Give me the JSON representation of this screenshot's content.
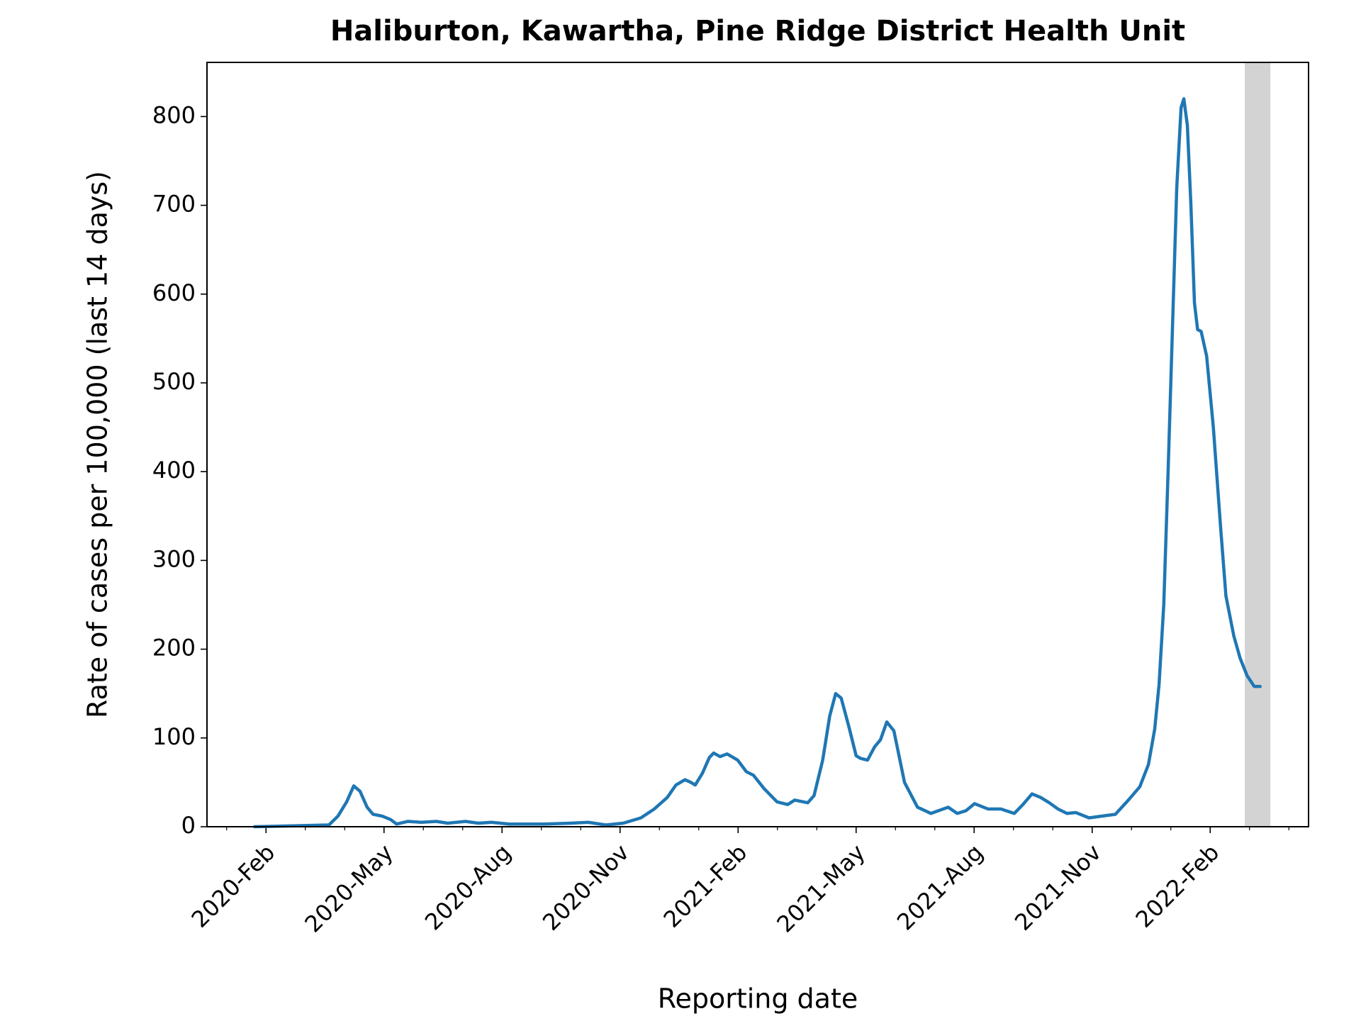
{
  "chart_data": {
    "type": "line",
    "title": "Haliburton, Kawartha, Pine Ridge District Health Unit",
    "x_label": "Reporting date",
    "y_label": "Rate of cases per 100,000 (last 14 days)",
    "x": [
      0.71,
      2.6,
      2.83,
      3.05,
      3.23,
      3.39,
      3.57,
      3.72,
      3.95,
      4.17,
      4.32,
      4.61,
      4.95,
      5.33,
      5.62,
      6.07,
      6.4,
      6.73,
      7.18,
      8.07,
      8.74,
      9.19,
      9.64,
      10.08,
      10.53,
      10.87,
      11.2,
      11.42,
      11.65,
      11.8,
      11.91,
      12.09,
      12.27,
      12.38,
      12.54,
      12.72,
      12.99,
      13.21,
      13.39,
      13.66,
      13.99,
      14.26,
      14.44,
      14.77,
      14.93,
      15.15,
      15.33,
      15.48,
      15.62,
      15.82,
      16.0,
      16.11,
      16.29,
      16.47,
      16.62,
      16.78,
      16.96,
      17.23,
      17.56,
      17.9,
      18.34,
      18.57,
      18.79,
      19.01,
      19.35,
      19.68,
      20.02,
      20.24,
      20.47,
      20.69,
      20.91,
      21.13,
      21.36,
      21.58,
      21.92,
      22.25,
      22.59,
      22.92,
      23.21,
      23.43,
      23.59,
      23.7,
      23.82,
      23.93,
      24.04,
      24.15,
      24.26,
      24.33,
      24.42,
      24.51,
      24.6,
      24.68,
      24.77,
      24.91,
      25.08,
      25.26,
      25.4,
      25.6,
      25.76,
      25.94,
      26.12,
      26.27
    ],
    "series": [
      {
        "color": "#1f77b4",
        "values": [
          0,
          2,
          12,
          28,
          46,
          40,
          22,
          14,
          12,
          8,
          3,
          6,
          5,
          6,
          4,
          6,
          4,
          5,
          3,
          3,
          4,
          5,
          2,
          4,
          10,
          20,
          33,
          47,
          53,
          50,
          47,
          60,
          78,
          83,
          79,
          82,
          75,
          62,
          58,
          43,
          28,
          25,
          30,
          27,
          35,
          75,
          125,
          150,
          145,
          112,
          80,
          77,
          75,
          90,
          98,
          118,
          108,
          50,
          22,
          15,
          22,
          15,
          18,
          26,
          20,
          20,
          15,
          25,
          37,
          33,
          27,
          20,
          15,
          16,
          10,
          12,
          14,
          30,
          45,
          70,
          110,
          160,
          250,
          400,
          560,
          720,
          810,
          820,
          790,
          700,
          590,
          560,
          558,
          530,
          450,
          340,
          260,
          215,
          190,
          170,
          158,
          158
        ]
      }
    ],
    "xlim": [
      -0.5,
      27.5
    ],
    "xticks": [
      {
        "value": 1,
        "label": "2020-Feb"
      },
      {
        "value": 4,
        "label": "2020-May"
      },
      {
        "value": 7,
        "label": "2020-Aug"
      },
      {
        "value": 10,
        "label": "2020-Nov"
      },
      {
        "value": 13,
        "label": "2021-Feb"
      },
      {
        "value": 16,
        "label": "2021-May"
      },
      {
        "value": 19,
        "label": "2021-Aug"
      },
      {
        "value": 22,
        "label": "2021-Nov"
      },
      {
        "value": 25,
        "label": "2022-Feb"
      }
    ],
    "xminorticks": [
      0,
      2,
      3,
      5,
      6,
      8,
      9,
      11,
      12,
      14,
      15,
      17,
      18,
      20,
      21,
      23,
      24,
      26,
      27
    ],
    "ylim": [
      0,
      861
    ],
    "yticks": [
      0,
      100,
      200,
      300,
      400,
      500,
      600,
      700,
      800
    ],
    "shaded_span": [
      25.88,
      26.53
    ],
    "shaded_color": "#d3d3d3",
    "grid": false
  }
}
